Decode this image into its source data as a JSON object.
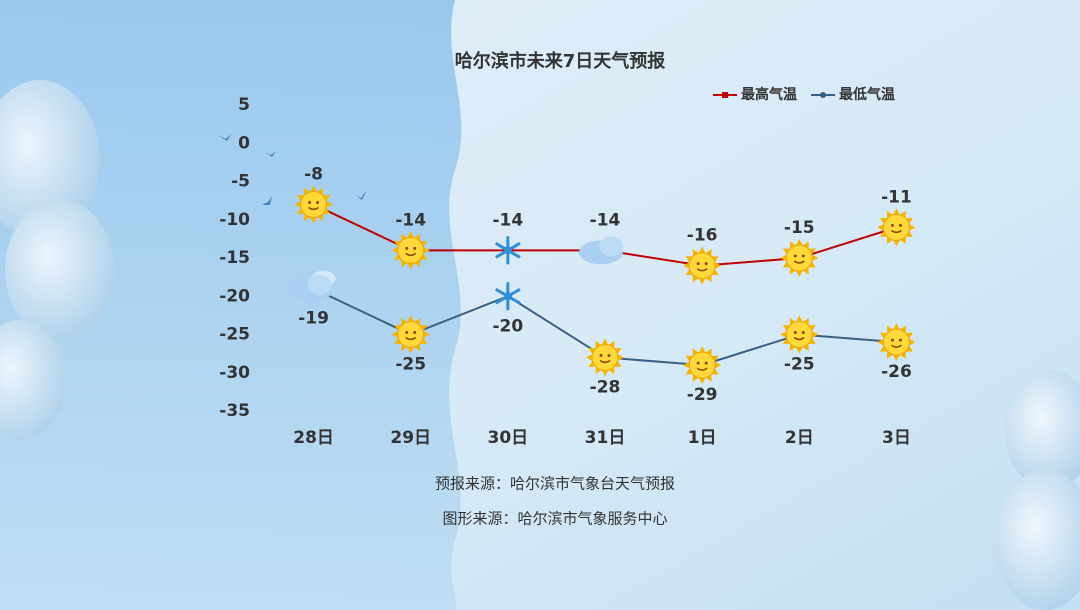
{
  "chart_data": {
    "type": "line",
    "title": "哈尔滨市未来7日天气预报",
    "categories": [
      "28日",
      "29日",
      "30日",
      "31日",
      "1日",
      "2日",
      "3日"
    ],
    "series": [
      {
        "name": "最高气温",
        "color": "#c00000",
        "marker": "square",
        "values": [
          -8,
          -14,
          -14,
          -14,
          -16,
          -15,
          -11
        ]
      },
      {
        "name": "最低气温",
        "color": "#3b5f82",
        "marker": "circle",
        "values": [
          -19,
          -25,
          -20,
          -28,
          -29,
          -25,
          -26
        ]
      }
    ],
    "ylim": [
      5,
      -35
    ],
    "yticks": [
      5,
      0,
      -5,
      -10,
      -15,
      -20,
      -25,
      -30,
      -35
    ],
    "grid": false,
    "legend": "top-right",
    "annotations": [
      "预报来源：哈尔滨市气象台天气预报",
      "图形来源：哈尔滨市气象服务中心"
    ]
  }
}
